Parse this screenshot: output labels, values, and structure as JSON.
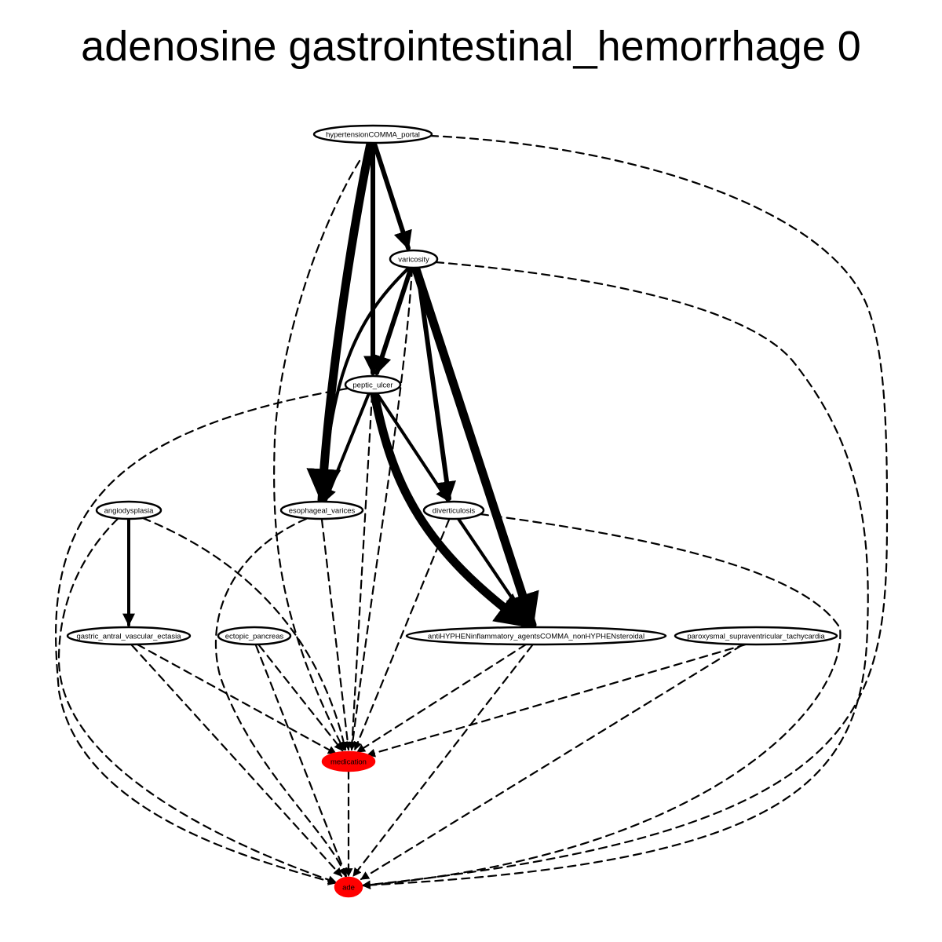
{
  "title": "adenosine gastrointestinal_hemorrhage 0",
  "colors": {
    "highlight": "#ff0000",
    "default_fill": "#ffffff",
    "stroke": "#000000"
  },
  "nodes": {
    "hypertension": {
      "label": "hypertensionCOMMA_portal",
      "highlighted": false
    },
    "varicosity": {
      "label": "varicosity",
      "highlighted": false
    },
    "peptic_ulcer": {
      "label": "peptic_ulcer",
      "highlighted": false
    },
    "angiodysplasia": {
      "label": "angiodysplasia",
      "highlighted": false
    },
    "esophageal_varices": {
      "label": "esophageal_varices",
      "highlighted": false
    },
    "diverticulosis": {
      "label": "diverticulosis",
      "highlighted": false
    },
    "gave": {
      "label": "gastric_antral_vascular_ectasia",
      "highlighted": false
    },
    "ectopic_pancreas": {
      "label": "ectopic_pancreas",
      "highlighted": false
    },
    "nsaid": {
      "label": "antiHYPHENinflammatory_agentsCOMMA_nonHYPHENsteroidal",
      "highlighted": false
    },
    "psvt": {
      "label": "paroxysmal_supraventricular_tachycardia",
      "highlighted": false
    },
    "medication": {
      "label": "medication",
      "highlighted": true
    },
    "ade": {
      "label": "ade",
      "highlighted": true
    }
  },
  "edges": [
    {
      "from": "hypertension",
      "to": "esophageal_varices",
      "style": "solid",
      "weight": "heavy"
    },
    {
      "from": "hypertension",
      "to": "peptic_ulcer",
      "style": "solid",
      "weight": "medium"
    },
    {
      "from": "hypertension",
      "to": "varicosity",
      "style": "solid",
      "weight": "medium"
    },
    {
      "from": "hypertension",
      "to": "medication",
      "style": "dashed",
      "weight": "thin"
    },
    {
      "from": "hypertension",
      "to": "ade",
      "style": "dashed",
      "weight": "thin"
    },
    {
      "from": "varicosity",
      "to": "peptic_ulcer",
      "style": "solid",
      "weight": "medium"
    },
    {
      "from": "varicosity",
      "to": "esophageal_varices",
      "style": "solid",
      "weight": "light"
    },
    {
      "from": "varicosity",
      "to": "diverticulosis",
      "style": "solid",
      "weight": "medium"
    },
    {
      "from": "varicosity",
      "to": "nsaid",
      "style": "solid",
      "weight": "heavy"
    },
    {
      "from": "varicosity",
      "to": "medication",
      "style": "dashed",
      "weight": "thin"
    },
    {
      "from": "varicosity",
      "to": "ade",
      "style": "dashed",
      "weight": "thin"
    },
    {
      "from": "peptic_ulcer",
      "to": "esophageal_varices",
      "style": "solid",
      "weight": "light"
    },
    {
      "from": "peptic_ulcer",
      "to": "diverticulosis",
      "style": "solid",
      "weight": "light"
    },
    {
      "from": "peptic_ulcer",
      "to": "nsaid",
      "style": "solid",
      "weight": "heavy"
    },
    {
      "from": "peptic_ulcer",
      "to": "medication",
      "style": "dashed",
      "weight": "thin"
    },
    {
      "from": "peptic_ulcer",
      "to": "ade",
      "style": "dashed",
      "weight": "thin"
    },
    {
      "from": "angiodysplasia",
      "to": "gave",
      "style": "solid",
      "weight": "light"
    },
    {
      "from": "angiodysplasia",
      "to": "medication",
      "style": "dashed",
      "weight": "thin"
    },
    {
      "from": "angiodysplasia",
      "to": "ade",
      "style": "dashed",
      "weight": "thin"
    },
    {
      "from": "esophageal_varices",
      "to": "medication",
      "style": "dashed",
      "weight": "thin"
    },
    {
      "from": "esophageal_varices",
      "to": "ade",
      "style": "dashed",
      "weight": "thin"
    },
    {
      "from": "diverticulosis",
      "to": "nsaid",
      "style": "solid",
      "weight": "light"
    },
    {
      "from": "diverticulosis",
      "to": "medication",
      "style": "dashed",
      "weight": "thin"
    },
    {
      "from": "diverticulosis",
      "to": "ade",
      "style": "dashed",
      "weight": "thin"
    },
    {
      "from": "gave",
      "to": "medication",
      "style": "dashed",
      "weight": "thin"
    },
    {
      "from": "gave",
      "to": "ade",
      "style": "dashed",
      "weight": "thin"
    },
    {
      "from": "ectopic_pancreas",
      "to": "medication",
      "style": "dashed",
      "weight": "thin"
    },
    {
      "from": "ectopic_pancreas",
      "to": "ade",
      "style": "dashed",
      "weight": "thin"
    },
    {
      "from": "nsaid",
      "to": "medication",
      "style": "dashed",
      "weight": "thin"
    },
    {
      "from": "nsaid",
      "to": "ade",
      "style": "dashed",
      "weight": "thin"
    },
    {
      "from": "psvt",
      "to": "medication",
      "style": "dashed",
      "weight": "thin"
    },
    {
      "from": "psvt",
      "to": "ade",
      "style": "dashed",
      "weight": "thin"
    },
    {
      "from": "medication",
      "to": "ade",
      "style": "dashed",
      "weight": "thin"
    }
  ]
}
